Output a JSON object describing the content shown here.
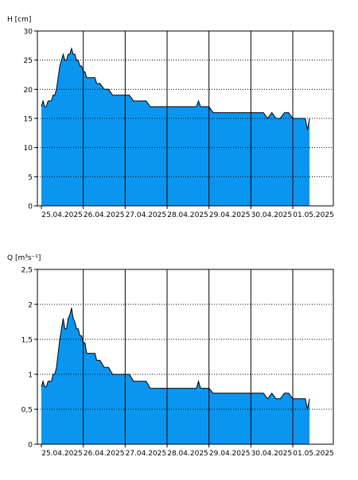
{
  "colors": {
    "fill": "#0A96F0",
    "line": "#000000",
    "grid": "#000000",
    "background": "#ffffff"
  },
  "chart_data": [
    {
      "type": "area",
      "ylabel": "H [cm]",
      "ylim": [
        0,
        30
      ],
      "yticks": [
        0,
        5,
        10,
        15,
        20,
        25,
        30
      ],
      "xlim": [
        0,
        7.0
      ],
      "xticks": [
        0,
        1,
        2,
        3,
        4,
        5,
        6
      ],
      "xticklabels": [
        "25.04.2025",
        "26.04.2025",
        "27.04.2025",
        "28.04.2025",
        "29.04.2025",
        "30.04.2025",
        "01.05.2025"
      ],
      "grid": "vertical solid, horizontal dotted",
      "x": [
        0.0,
        0.04,
        0.08,
        0.12,
        0.16,
        0.2,
        0.24,
        0.28,
        0.32,
        0.36,
        0.4,
        0.44,
        0.48,
        0.52,
        0.56,
        0.6,
        0.64,
        0.68,
        0.72,
        0.76,
        0.8,
        0.84,
        0.88,
        0.92,
        0.96,
        1.0,
        1.04,
        1.08,
        1.12,
        1.16,
        1.2,
        1.24,
        1.28,
        1.32,
        1.36,
        1.4,
        1.5,
        1.6,
        1.7,
        1.8,
        1.9,
        2.0,
        2.1,
        2.2,
        2.3,
        2.4,
        2.5,
        2.6,
        2.7,
        2.8,
        2.9,
        3.0,
        3.1,
        3.2,
        3.3,
        3.4,
        3.5,
        3.6,
        3.7,
        3.75,
        3.8,
        3.9,
        4.0,
        4.1,
        4.2,
        4.4,
        4.6,
        4.8,
        5.0,
        5.2,
        5.3,
        5.4,
        5.5,
        5.6,
        5.7,
        5.8,
        5.9,
        6.0,
        6.1,
        6.2,
        6.3,
        6.35,
        6.4
      ],
      "series": [
        {
          "values": [
            17,
            18,
            17,
            17,
            18,
            18,
            18,
            19,
            19,
            20,
            22,
            24,
            25,
            26,
            25,
            25,
            26,
            26,
            27,
            26,
            26,
            25,
            25,
            24,
            24,
            23,
            23,
            22,
            22,
            22,
            22,
            22,
            22,
            21,
            21,
            21,
            20,
            20,
            19,
            19,
            19,
            19,
            19,
            18,
            18,
            18,
            18,
            17,
            17,
            17,
            17,
            17,
            17,
            17,
            17,
            17,
            17,
            17,
            17,
            18,
            17,
            17,
            17,
            16,
            16,
            16,
            16,
            16,
            16,
            16,
            16,
            15,
            16,
            15,
            15,
            16,
            16,
            15,
            15,
            15,
            15,
            13,
            15
          ]
        }
      ]
    },
    {
      "type": "area",
      "ylabel": "Q [m³s⁻¹]",
      "ylim": [
        0,
        2.5
      ],
      "yticks": [
        0,
        0.5,
        1,
        1.5,
        2,
        2.5
      ],
      "yticklabels": [
        "0",
        "0,5",
        "1",
        "1,5",
        "2",
        "2,5"
      ],
      "xlim": [
        0,
        7.0
      ],
      "xticks": [
        0,
        1,
        2,
        3,
        4,
        5,
        6
      ],
      "xticklabels": [
        "25.04.2025",
        "26.04.2025",
        "27.04.2025",
        "28.04.2025",
        "29.04.2025",
        "30.04.2025",
        "01.05.2025"
      ],
      "grid": "vertical solid, horizontal dotted",
      "x": [
        0.0,
        0.04,
        0.08,
        0.12,
        0.16,
        0.2,
        0.24,
        0.28,
        0.32,
        0.36,
        0.4,
        0.44,
        0.48,
        0.52,
        0.56,
        0.6,
        0.64,
        0.68,
        0.72,
        0.76,
        0.8,
        0.84,
        0.88,
        0.92,
        0.96,
        1.0,
        1.04,
        1.08,
        1.12,
        1.16,
        1.2,
        1.24,
        1.28,
        1.32,
        1.36,
        1.4,
        1.5,
        1.6,
        1.7,
        1.8,
        1.9,
        2.0,
        2.1,
        2.2,
        2.3,
        2.4,
        2.5,
        2.6,
        2.7,
        2.8,
        2.9,
        3.0,
        3.1,
        3.2,
        3.3,
        3.4,
        3.5,
        3.6,
        3.7,
        3.75,
        3.8,
        3.9,
        4.0,
        4.1,
        4.2,
        4.4,
        4.6,
        4.8,
        5.0,
        5.2,
        5.3,
        5.4,
        5.5,
        5.6,
        5.7,
        5.8,
        5.9,
        6.0,
        6.1,
        6.2,
        6.3,
        6.35,
        6.4
      ],
      "series": [
        {
          "values": [
            0.82,
            0.9,
            0.82,
            0.82,
            0.9,
            0.9,
            0.9,
            1.0,
            1.0,
            1.1,
            1.3,
            1.5,
            1.65,
            1.8,
            1.65,
            1.65,
            1.8,
            1.85,
            1.95,
            1.8,
            1.75,
            1.65,
            1.65,
            1.55,
            1.55,
            1.45,
            1.45,
            1.3,
            1.3,
            1.3,
            1.3,
            1.3,
            1.3,
            1.2,
            1.2,
            1.2,
            1.1,
            1.1,
            1.0,
            1.0,
            1.0,
            1.0,
            1.0,
            0.9,
            0.9,
            0.9,
            0.9,
            0.8,
            0.8,
            0.8,
            0.8,
            0.8,
            0.8,
            0.8,
            0.8,
            0.8,
            0.8,
            0.8,
            0.8,
            0.9,
            0.8,
            0.8,
            0.8,
            0.73,
            0.73,
            0.73,
            0.73,
            0.73,
            0.73,
            0.73,
            0.73,
            0.65,
            0.73,
            0.65,
            0.65,
            0.73,
            0.73,
            0.65,
            0.65,
            0.65,
            0.65,
            0.5,
            0.65
          ]
        }
      ]
    }
  ]
}
